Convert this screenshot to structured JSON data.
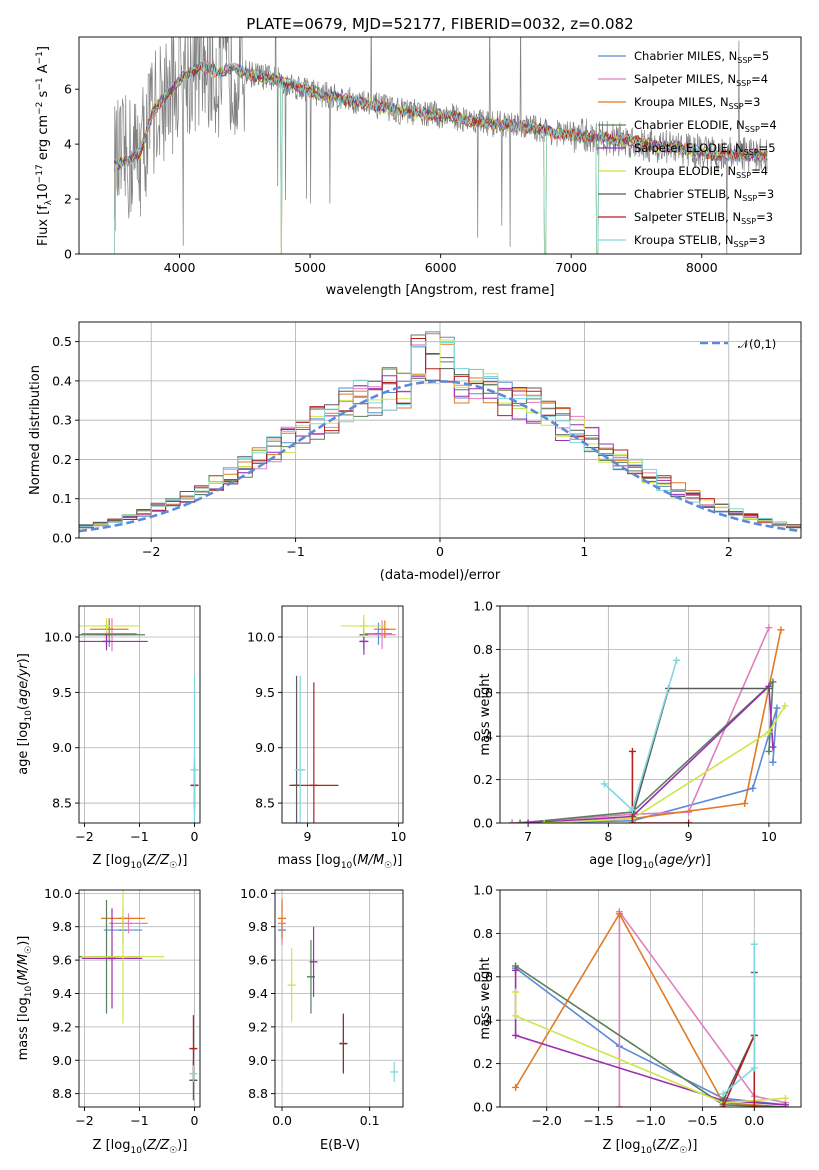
{
  "figure": {
    "title": "PLATE=0679, MJD=52177, FIBERID=0032, z=0.082"
  },
  "colors": {
    "Chabrier MILES": "#5b8bd8",
    "Salpeter MILES": "#e17fbe",
    "Kroupa MILES": "#e07b24",
    "Chabrier ELODIE": "#5a7f5c",
    "Salpeter ELODIE": "#9b2fb0",
    "Kroupa ELODIE": "#cde64a",
    "Chabrier STELIB": "#5a5a5a",
    "Salpeter STELIB": "#b2221f",
    "Kroupa STELIB": "#7fd8df",
    "data": "#808080"
  },
  "chart_data": [
    {
      "id": "spectrum",
      "type": "line",
      "xlabel": "wavelength [Angstrom, rest frame]",
      "ylabel": "Flux [f_λ10^-17 erg cm^-2 s^-1 A^-1]",
      "xlim": [
        3230,
        8760
      ],
      "ylim": [
        0,
        7.9
      ],
      "xticks": [
        4000,
        5000,
        6000,
        7000,
        8000
      ],
      "yticks": [
        0,
        2,
        4,
        6
      ],
      "legend_position": "upper right",
      "legend": [
        {
          "model": "Chabrier MILES",
          "label": "Chabrier MILES, N",
          "sub": "SSP",
          "suffix": "=5"
        },
        {
          "model": "Salpeter MILES",
          "label": "Salpeter MILES, N",
          "sub": "SSP",
          "suffix": "=4"
        },
        {
          "model": "Kroupa MILES",
          "label": "Kroupa MILES, N",
          "sub": "SSP",
          "suffix": "=3"
        },
        {
          "model": "Chabrier ELODIE",
          "label": "Chabrier ELODIE, N",
          "sub": "SSP",
          "suffix": "=4"
        },
        {
          "model": "Salpeter ELODIE",
          "label": "Salpeter ELODIE, N",
          "sub": "SSP",
          "suffix": "=5"
        },
        {
          "model": "Kroupa ELODIE",
          "label": "Kroupa ELODIE, N",
          "sub": "SSP",
          "suffix": "=4"
        },
        {
          "model": "Chabrier STELIB",
          "label": "Chabrier STELIB, N",
          "sub": "SSP",
          "suffix": "=3"
        },
        {
          "model": "Salpeter STELIB",
          "label": "Salpeter STELIB, N",
          "sub": "SSP",
          "suffix": "=3"
        },
        {
          "model": "Kroupa STELIB",
          "label": "Kroupa STELIB, N",
          "sub": "SSP",
          "suffix": "=3"
        }
      ],
      "continuum": {
        "x": [
          3500,
          3600,
          3700,
          3800,
          3900,
          4000,
          4100,
          4200,
          4300,
          4400,
          4500,
          4700,
          4900,
          5100,
          5300,
          5500,
          5700,
          5900,
          6100,
          6300,
          6500,
          6700,
          6900,
          7100,
          7300,
          7500,
          7700,
          7900,
          8100,
          8300,
          8500
        ],
        "y": [
          3.2,
          3.4,
          3.7,
          5.2,
          5.8,
          6.3,
          6.7,
          6.8,
          6.6,
          6.8,
          6.6,
          6.4,
          6.1,
          5.8,
          5.6,
          5.4,
          5.2,
          5.1,
          5.0,
          4.8,
          4.7,
          4.6,
          4.4,
          4.3,
          4.2,
          4.1,
          3.9,
          3.8,
          3.6,
          3.6,
          3.6
        ]
      },
      "data_noise": {
        "x_range": [
          3500,
          8500
        ],
        "amplitude": 1.1
      },
      "model_dips": [
        3500,
        4780,
        6800,
        7200
      ]
    },
    {
      "id": "residuals",
      "type": "step",
      "xlabel": "(data-model)/error",
      "ylabel": "Normed distribution",
      "xlim": [
        -2.5,
        2.5
      ],
      "ylim": [
        0,
        0.55
      ],
      "xticks": [
        -2,
        -1,
        0,
        1,
        2
      ],
      "yticks": [
        0.0,
        0.1,
        0.2,
        0.3,
        0.4,
        0.5
      ],
      "legend_position": "upper right",
      "reference": {
        "label": "𝒩(0,1)",
        "mean": 0,
        "sigma": 1
      },
      "bin_width": 0.1
    },
    {
      "id": "age-Z",
      "type": "errorbar",
      "xlabel": "Z [log10(Z/Z☉)]",
      "ylabel": "age  [log10(age/yr)]",
      "xlim": [
        -2.1,
        0.1
      ],
      "ylim": [
        8.32,
        10.28
      ],
      "xticks": [
        -2,
        -1,
        0
      ],
      "yticks": [
        8.5,
        9.0,
        9.5,
        10.0
      ],
      "points": [
        {
          "model": "Chabrier MILES",
          "x": -1.55,
          "xerr": 0.5,
          "y": 10.03,
          "yerr": 0.12
        },
        {
          "model": "Salpeter MILES",
          "x": -1.5,
          "xerr": 0.4,
          "y": 10.02,
          "yerr": 0.15
        },
        {
          "model": "Kroupa MILES",
          "x": -1.55,
          "xerr": 0.35,
          "y": 10.07,
          "yerr": 0.1
        },
        {
          "model": "Chabrier ELODIE",
          "x": -1.6,
          "xerr": 0.7,
          "y": 10.02,
          "yerr": 0.1
        },
        {
          "model": "Salpeter ELODIE",
          "x": -1.6,
          "xerr": 0.75,
          "y": 9.96,
          "yerr": 0.08
        },
        {
          "model": "Kroupa ELODIE",
          "x": -1.6,
          "xerr": 0.6,
          "y": 10.1,
          "yerr": 0.07
        },
        {
          "model": "Chabrier STELIB",
          "x": 0.0,
          "xerr": 0.03,
          "y": 8.66,
          "yerr": 0.2
        },
        {
          "model": "Salpeter STELIB",
          "x": 0.0,
          "xerr": 0.06,
          "y": 8.66,
          "yerr": 0.25
        },
        {
          "model": "Kroupa STELIB",
          "x": 0.0,
          "xerr": 0.03,
          "y": 8.8,
          "yerr": 0.85
        }
      ]
    },
    {
      "id": "age-mass",
      "type": "errorbar",
      "xlabel": "mass [log10(M/M☉)]",
      "ylabel": "",
      "xlim": [
        8.72,
        10.05
      ],
      "ylim": [
        8.32,
        10.28
      ],
      "xticks": [
        9,
        10
      ],
      "yticks": [
        8.5,
        9.0,
        9.5,
        10.0
      ],
      "points": [
        {
          "model": "Chabrier MILES",
          "x": 9.78,
          "xerr": 0.15,
          "y": 10.03,
          "yerr": 0.1
        },
        {
          "model": "Salpeter MILES",
          "x": 9.82,
          "xerr": 0.15,
          "y": 10.02,
          "yerr": 0.13
        },
        {
          "model": "Kroupa MILES",
          "x": 9.85,
          "xerr": 0.12,
          "y": 10.07,
          "yerr": 0.08
        },
        {
          "model": "Chabrier ELODIE",
          "x": 9.62,
          "xerr": 0.05,
          "y": 10.02,
          "yerr": 0.13
        },
        {
          "model": "Salpeter ELODIE",
          "x": 9.62,
          "xerr": 0.05,
          "y": 9.96,
          "yerr": 0.12
        },
        {
          "model": "Kroupa ELODIE",
          "x": 9.62,
          "xerr": 0.25,
          "y": 10.1,
          "yerr": 0.1
        },
        {
          "model": "Chabrier STELIB",
          "x": 8.88,
          "xerr": 0.06,
          "y": 8.66,
          "yerr": 0.99
        },
        {
          "model": "Salpeter STELIB",
          "x": 9.07,
          "xerr": 0.27,
          "y": 8.66,
          "yerr": 0.93
        },
        {
          "model": "Kroupa STELIB",
          "x": 8.92,
          "xerr": 0.06,
          "y": 8.8,
          "yerr": 0.85
        }
      ]
    },
    {
      "id": "weight-age",
      "type": "line",
      "xlabel": "age  [log10(age/yr)]",
      "ylabel": "mass weight",
      "xlim": [
        6.65,
        10.4
      ],
      "ylim": [
        0,
        1
      ],
      "xticks": [
        7,
        8,
        9,
        10
      ],
      "yticks": [
        0.0,
        0.2,
        0.4,
        0.6,
        0.8,
        1.0
      ],
      "series": [
        {
          "model": "Chabrier MILES",
          "x": [
            6.8,
            8.3,
            9.8,
            10.1,
            10.05
          ],
          "y": [
            0.0,
            0.01,
            0.16,
            0.53,
            0.28
          ]
        },
        {
          "model": "Salpeter MILES",
          "x": [
            6.8,
            8.3,
            9.0,
            10.0
          ],
          "y": [
            0.0,
            0.04,
            0.05,
            0.9
          ]
        },
        {
          "model": "Kroupa MILES",
          "x": [
            7.0,
            8.3,
            9.7,
            10.15
          ],
          "y": [
            0.0,
            0.02,
            0.09,
            0.89
          ]
        },
        {
          "model": "Chabrier ELODIE",
          "x": [
            6.9,
            8.3,
            10.05,
            10.0
          ],
          "y": [
            0.0,
            0.05,
            0.65,
            0.33
          ]
        },
        {
          "model": "Salpeter ELODIE",
          "x": [
            7.0,
            8.3,
            10.0,
            10.05
          ],
          "y": [
            0.0,
            0.03,
            0.63,
            0.35
          ]
        },
        {
          "model": "Kroupa ELODIE",
          "x": [
            7.2,
            8.3,
            10.0,
            10.2
          ],
          "y": [
            0.0,
            0.02,
            0.42,
            0.54
          ]
        },
        {
          "model": "Chabrier STELIB",
          "x": [
            8.3,
            8.75,
            10.0
          ],
          "y": [
            0.03,
            0.62,
            0.62
          ]
        },
        {
          "model": "Salpeter STELIB",
          "x": [
            8.3,
            8.3,
            9.0
          ],
          "y": [
            0.33,
            0.0,
            0.0
          ]
        },
        {
          "model": "Kroupa STELIB",
          "x": [
            7.95,
            8.3,
            8.85
          ],
          "y": [
            0.18,
            0.06,
            0.75
          ]
        }
      ]
    },
    {
      "id": "mass-Z",
      "type": "errorbar",
      "xlabel": "Z [log10(Z/Z☉)]",
      "ylabel": "mass [log10(M/M☉)]",
      "xlim": [
        -2.1,
        0.1
      ],
      "ylim": [
        8.72,
        10.02
      ],
      "xticks": [
        -2,
        -1,
        0
      ],
      "yticks": [
        8.8,
        9.0,
        9.2,
        9.4,
        9.6,
        9.8,
        10.0
      ],
      "points": [
        {
          "model": "Chabrier MILES",
          "x": -1.3,
          "xerr": 0.35,
          "y": 9.78,
          "yerr": 0.08
        },
        {
          "model": "Salpeter MILES",
          "x": -1.2,
          "xerr": 0.35,
          "y": 9.82,
          "yerr": 0.06
        },
        {
          "model": "Kroupa MILES",
          "x": -1.3,
          "xerr": 0.4,
          "y": 9.85,
          "yerr": 0.05
        },
        {
          "model": "Chabrier ELODIE",
          "x": -1.6,
          "xerr": 0.6,
          "y": 9.62,
          "yerr": 0.34
        },
        {
          "model": "Salpeter ELODIE",
          "x": -1.5,
          "xerr": 0.55,
          "y": 9.61,
          "yerr": 0.3
        },
        {
          "model": "Kroupa ELODIE",
          "x": -1.3,
          "xerr": 0.75,
          "y": 9.62,
          "yerr": 0.4
        },
        {
          "model": "Chabrier STELIB",
          "x": -0.02,
          "xerr": 0.06,
          "y": 8.88,
          "yerr": 0.12
        },
        {
          "model": "Salpeter STELIB",
          "x": -0.02,
          "xerr": 0.06,
          "y": 9.07,
          "yerr": 0.2
        },
        {
          "model": "Kroupa STELIB",
          "x": -0.02,
          "xerr": 0.03,
          "y": 8.92,
          "yerr": 0.05
        }
      ]
    },
    {
      "id": "mass-EBV",
      "type": "errorbar",
      "xlabel": "E(B-V)",
      "ylabel": "",
      "xlim": [
        -0.008,
        0.138
      ],
      "ylim": [
        8.72,
        10.02
      ],
      "xticks": [
        0.0,
        0.1
      ],
      "yticks": [
        8.8,
        9.0,
        9.2,
        9.4,
        9.6,
        9.8,
        10.0
      ],
      "points": [
        {
          "model": "Chabrier MILES",
          "x": 0.0,
          "xerr": 0,
          "y": 9.78,
          "yerr": 0.06
        },
        {
          "model": "Salpeter MILES",
          "x": 0.0,
          "xerr": 0,
          "y": 9.82,
          "yerr": 0.13
        },
        {
          "model": "Kroupa MILES",
          "x": 0.0,
          "xerr": 0,
          "y": 9.85,
          "yerr": 0.12
        },
        {
          "model": "Chabrier ELODIE",
          "x": 0.033,
          "xerr": 0,
          "y": 9.5,
          "yerr": 0.22
        },
        {
          "model": "Salpeter ELODIE",
          "x": 0.036,
          "xerr": 0,
          "y": 9.59,
          "yerr": 0.21
        },
        {
          "model": "Kroupa ELODIE",
          "x": 0.011,
          "xerr": 0,
          "y": 9.45,
          "yerr": 0.22
        },
        {
          "model": "Chabrier STELIB",
          "x": 0.07,
          "xerr": 0,
          "y": 9.1,
          "yerr": 0.17
        },
        {
          "model": "Salpeter STELIB",
          "x": 0.07,
          "xerr": 0,
          "y": 9.1,
          "yerr": 0.18
        },
        {
          "model": "Kroupa STELIB",
          "x": 0.128,
          "xerr": 0,
          "y": 8.93,
          "yerr": 0.06
        }
      ]
    },
    {
      "id": "weight-Z",
      "type": "line",
      "xlabel": "Z [log10(Z/Z☉)]",
      "ylabel": "mass weight",
      "xlim": [
        -2.45,
        0.45
      ],
      "ylim": [
        0,
        1
      ],
      "xticks": [
        -2.0,
        -1.5,
        -1.0,
        -0.5,
        0.0
      ],
      "yticks": [
        0.0,
        0.2,
        0.4,
        0.6,
        0.8,
        1.0
      ],
      "series": [
        {
          "model": "Chabrier MILES",
          "x": [
            -2.3,
            -1.3,
            -0.3,
            0.3
          ],
          "y": [
            0.64,
            0.28,
            0.04,
            0.01
          ]
        },
        {
          "model": "Salpeter MILES",
          "x": [
            -1.3,
            -1.3,
            0.0,
            0.3
          ],
          "y": [
            0.0,
            0.9,
            0.05,
            0.02
          ]
        },
        {
          "model": "Kroupa MILES",
          "x": [
            -2.3,
            -1.3,
            -0.3,
            0.3
          ],
          "y": [
            0.09,
            0.89,
            0.02,
            0.0
          ]
        },
        {
          "model": "Chabrier ELODIE",
          "x": [
            -2.3,
            -0.3,
            0.3
          ],
          "y": [
            0.65,
            0.01,
            0.0
          ]
        },
        {
          "model": "Salpeter ELODIE",
          "x": [
            -2.3,
            -2.3,
            -0.3,
            0.3
          ],
          "y": [
            0.63,
            0.33,
            0.03,
            0.01
          ]
        },
        {
          "model": "Kroupa ELODIE",
          "x": [
            -2.3,
            -2.3,
            -0.3,
            0.3
          ],
          "y": [
            0.53,
            0.42,
            0.02,
            0.04
          ]
        },
        {
          "model": "Chabrier STELIB",
          "x": [
            -0.3,
            0.0,
            0.0
          ],
          "y": [
            0.03,
            0.33,
            0.62
          ]
        },
        {
          "model": "Salpeter STELIB",
          "x": [
            -0.3,
            0.0,
            0.0
          ],
          "y": [
            0.0,
            0.33,
            0.0
          ]
        },
        {
          "model": "Kroupa STELIB",
          "x": [
            -0.3,
            0.0,
            0.0
          ],
          "y": [
            0.06,
            0.18,
            0.75
          ]
        }
      ]
    }
  ]
}
